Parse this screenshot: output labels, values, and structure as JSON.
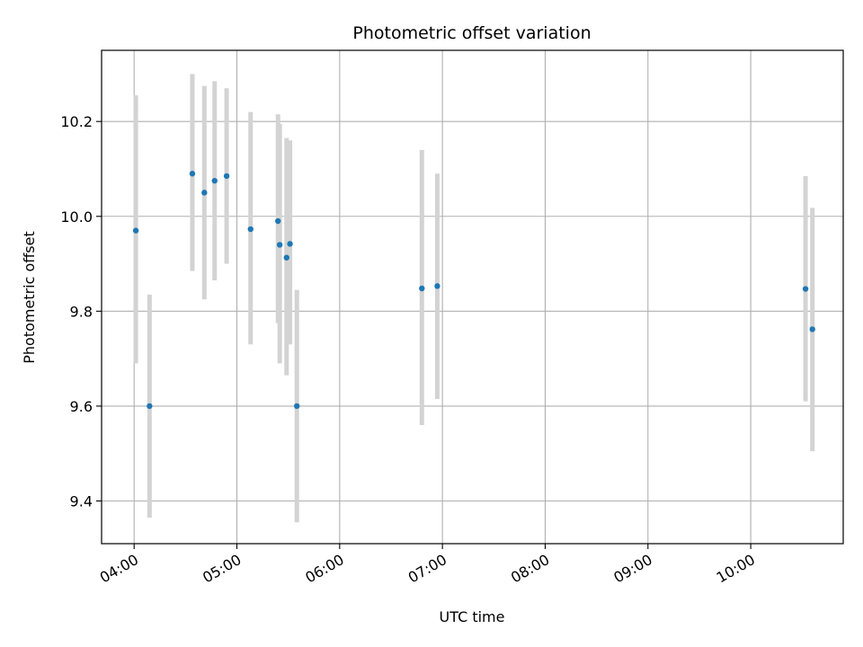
{
  "chart_data": {
    "type": "scatter",
    "title": "Photometric offset variation",
    "xlabel": "UTC time",
    "ylabel": "Photometric offset",
    "x_ticks": [
      "04:00",
      "05:00",
      "06:00",
      "07:00",
      "08:00",
      "09:00",
      "10:00"
    ],
    "y_ticks": [
      "9.4",
      "9.6",
      "9.8",
      "10.0",
      "10.2"
    ],
    "xlim": [
      "03:41",
      "10:54"
    ],
    "ylim": [
      9.31,
      10.35
    ],
    "grid": true,
    "point_color": "#1f77b4",
    "errorbar_color": "#d3d3d3",
    "points": [
      {
        "time": "04:01",
        "y": 9.97,
        "lo": 9.69,
        "hi": 10.255
      },
      {
        "time": "04:09",
        "y": 9.6,
        "lo": 9.365,
        "hi": 9.835
      },
      {
        "time": "04:34",
        "y": 10.09,
        "lo": 9.885,
        "hi": 10.3
      },
      {
        "time": "04:41",
        "y": 10.05,
        "lo": 9.825,
        "hi": 10.275
      },
      {
        "time": "04:47",
        "y": 10.075,
        "lo": 9.865,
        "hi": 10.285
      },
      {
        "time": "04:54",
        "y": 10.085,
        "lo": 9.9,
        "hi": 10.27
      },
      {
        "time": "05:08",
        "y": 9.973,
        "lo": 9.73,
        "hi": 10.22
      },
      {
        "time": "05:24",
        "y": 9.99,
        "lo": 9.775,
        "hi": 10.215
      },
      {
        "time": "05:25",
        "y": 9.94,
        "lo": 9.69,
        "hi": 10.195
      },
      {
        "time": "05:29",
        "y": 9.913,
        "lo": 9.665,
        "hi": 10.165
      },
      {
        "time": "05:31",
        "y": 9.942,
        "lo": 9.73,
        "hi": 10.16
      },
      {
        "time": "05:35",
        "y": 9.6,
        "lo": 9.355,
        "hi": 9.845
      },
      {
        "time": "06:48",
        "y": 9.848,
        "lo": 9.56,
        "hi": 10.14
      },
      {
        "time": "06:57",
        "y": 9.853,
        "lo": 9.615,
        "hi": 10.09
      },
      {
        "time": "10:32",
        "y": 9.847,
        "lo": 9.61,
        "hi": 10.085
      },
      {
        "time": "10:36",
        "y": 9.762,
        "lo": 9.505,
        "hi": 10.018
      }
    ]
  }
}
